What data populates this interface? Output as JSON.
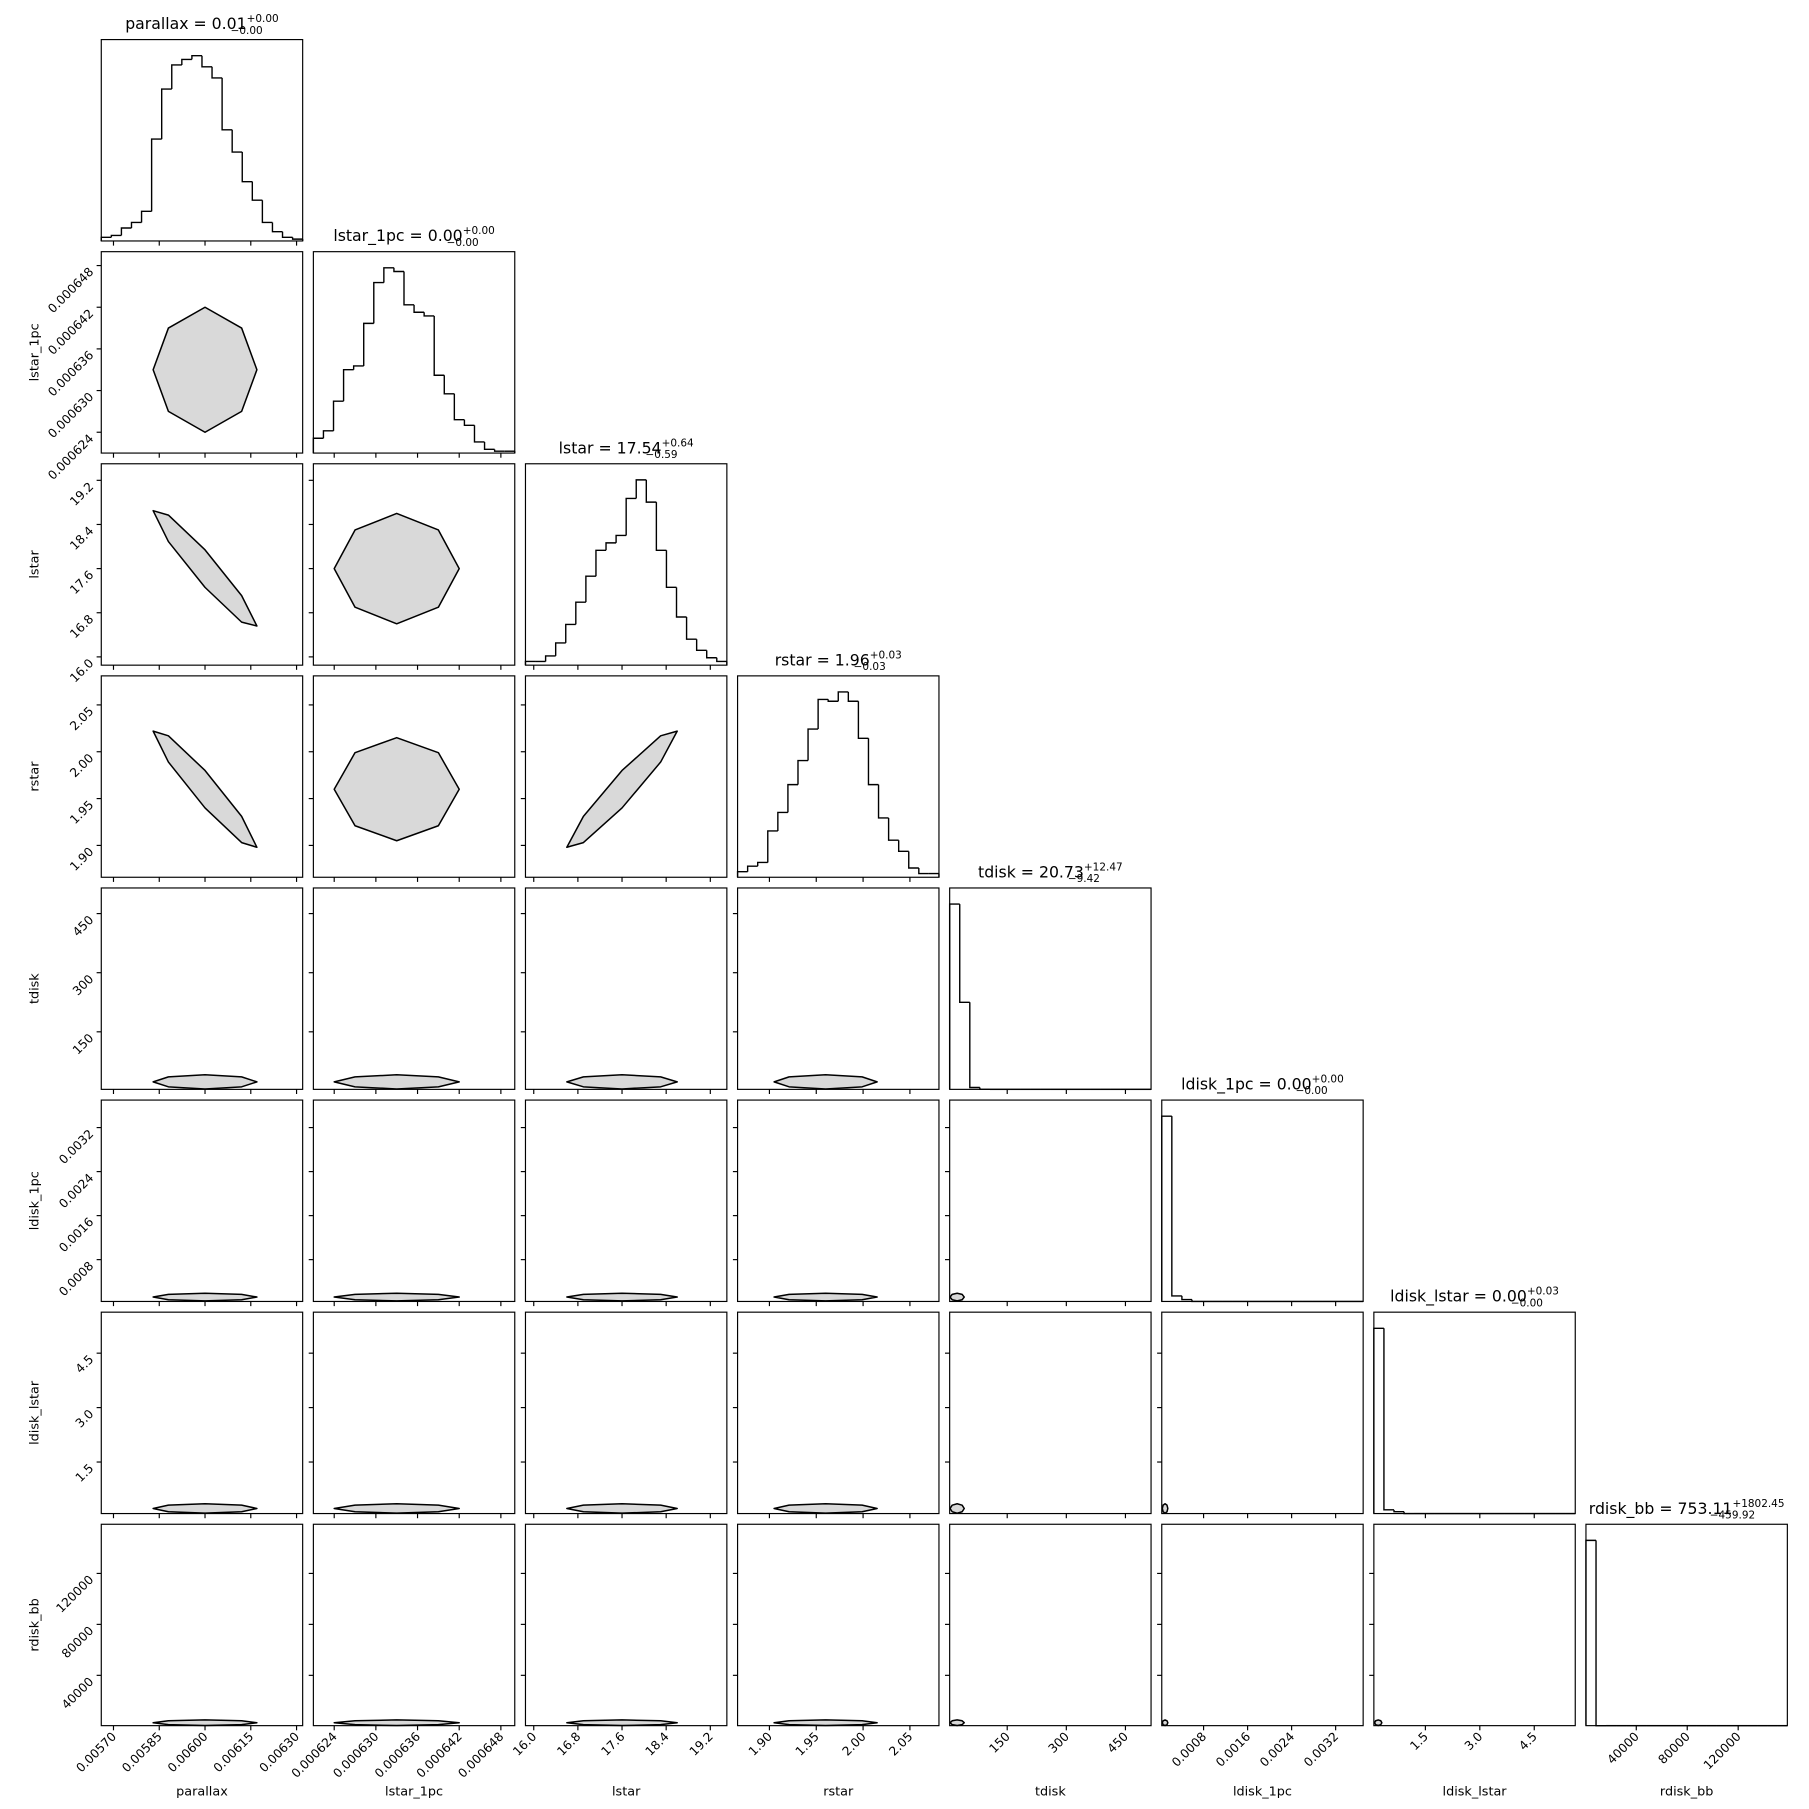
{
  "chart_data": {
    "type": "corner",
    "params": [
      {
        "name": "parallax",
        "title": {
          "text": "parallax = 0.01",
          "sup": "+0.00",
          "sub": "−0.00"
        },
        "lim": [
          0.00566,
          0.00632
        ],
        "ticks": [
          {
            "value": 0.0057,
            "label": "0.00570"
          },
          0.00585,
          {
            "value": 0.006,
            "label": "0.00600"
          },
          0.00615,
          {
            "value": 0.0063,
            "label": "0.00630"
          }
        ],
        "bins": [
          0.00566,
          0.005693,
          0.005726,
          0.005759,
          0.005792,
          0.005825,
          0.005858,
          0.005891,
          0.005924,
          0.005957,
          0.00599,
          0.006023,
          0.006056,
          0.006089,
          0.006122,
          0.006155,
          0.006188,
          0.006221,
          0.006254,
          0.006287,
          0.00632
        ],
        "counts": [
          2,
          3,
          7,
          10,
          16,
          55,
          82,
          95,
          98,
          100,
          94,
          88,
          60,
          48,
          32,
          22,
          10,
          5,
          2,
          1
        ]
      },
      {
        "name": "lstar_1pc",
        "title": {
          "text": "lstar_1pc = 0.00",
          "sup": "+0.00",
          "sub": "−0.00"
        },
        "lim": [
          0.000621,
          0.00065
        ],
        "ticks": [
          0.000624,
          {
            "value": 0.00063,
            "label": "0.000630"
          },
          0.000636,
          0.000642,
          0.000648
        ],
        "bins": [
          0.000621,
          0.00062245,
          0.0006239,
          0.00062535,
          0.0006268,
          0.00062825,
          0.0006297,
          0.00063115,
          0.0006326,
          0.00063405,
          0.0006355,
          0.00063695,
          0.0006384,
          0.00063985,
          0.0006413,
          0.00064275,
          0.0006442,
          0.00064565,
          0.0006471,
          0.00064855,
          0.00065
        ],
        "counts": [
          8,
          12,
          28,
          45,
          47,
          70,
          92,
          100,
          98,
          80,
          76,
          74,
          42,
          32,
          18,
          15,
          6,
          2,
          1,
          1
        ]
      },
      {
        "name": "lstar",
        "title": {
          "text": "lstar = 17.54",
          "sup": "+0.64",
          "sub": "−0.59"
        },
        "lim": [
          15.85,
          19.5
        ],
        "ticks": [
          {
            "value": 16,
            "label": "16.0"
          },
          16.8,
          17.6,
          18.4,
          19.2
        ],
        "bins": [
          15.85,
          16.0325,
          16.215,
          16.3975,
          16.58,
          16.7625,
          16.945,
          17.1275,
          17.31,
          17.4925,
          17.675,
          17.8575,
          18.04,
          18.2225,
          18.405,
          18.5875,
          18.77,
          18.9525,
          19.135,
          19.3175,
          19.5
        ],
        "counts": [
          2,
          2,
          5,
          12,
          22,
          34,
          48,
          62,
          66,
          70,
          90,
          100,
          88,
          62,
          42,
          26,
          14,
          8,
          4,
          2
        ]
      },
      {
        "name": "rstar",
        "title": {
          "text": "rstar = 1.96",
          "sup": "+0.03",
          "sub": "−0.03"
        },
        "lim": [
          1.866,
          2.081
        ],
        "ticks": [
          {
            "value": 1.9,
            "label": "1.90"
          },
          1.95,
          {
            "value": 2,
            "label": "2.00"
          },
          2.05
        ],
        "bins": [
          1.866,
          1.87675,
          1.8875,
          1.89825,
          1.909,
          1.91975,
          1.9305,
          1.94125,
          1.952,
          1.96275,
          1.9735,
          1.98425,
          1.995,
          2.00575,
          2.0165,
          2.02725,
          2.038,
          2.04875,
          2.0595,
          2.07025,
          2.081
        ],
        "counts": [
          3,
          6,
          8,
          25,
          35,
          50,
          63,
          80,
          96,
          95,
          100,
          95,
          75,
          50,
          32,
          20,
          14,
          5,
          2,
          2
        ]
      },
      {
        "name": "tdisk",
        "title": {
          "text": "tdisk = 20.73",
          "sup": "+12.47",
          "sub": "−9.42"
        },
        "lim": [
          4,
          515
        ],
        "ticks": [
          150,
          300,
          450
        ],
        "bins": [
          4,
          29.55,
          55.1,
          80.65,
          106.2,
          131.75,
          157.3,
          182.85,
          208.4,
          233.95,
          259.5,
          285.05,
          310.6,
          336.15,
          361.7,
          387.25,
          412.8,
          438.35,
          463.9,
          489.45,
          515
        ],
        "counts": [
          100,
          47,
          1,
          0,
          0,
          0,
          0,
          0,
          0,
          0,
          0,
          0,
          0,
          0,
          0,
          0,
          0,
          0,
          0,
          0
        ]
      },
      {
        "name": "ldisk_1pc",
        "title": {
          "text": "ldisk_1pc = 0.00",
          "sup": "+0.00",
          "sub": "−0.00"
        },
        "lim": [
          4e-05,
          0.0037
        ],
        "ticks": [
          0.0008,
          0.0016,
          0.0024,
          0.0032
        ],
        "bins": [
          4e-05,
          0.000223,
          0.000406,
          0.000589,
          0.000772,
          0.000955,
          0.001138,
          0.001321,
          0.001504,
          0.001687,
          0.00187,
          0.002053,
          0.002236,
          0.002419,
          0.002602,
          0.002785,
          0.002968,
          0.003151,
          0.003334,
          0.003517,
          0.0037
        ],
        "counts": [
          100,
          3,
          1,
          0,
          0,
          0,
          0,
          0,
          0,
          0,
          0,
          0,
          0,
          0,
          0,
          0,
          0,
          0,
          0,
          0
        ]
      },
      {
        "name": "ldisk_lstar",
        "title": {
          "text": "ldisk_lstar = 0.00",
          "sup": "+0.03",
          "sub": "−0.00"
        },
        "lim": [
          0.08,
          5.63
        ],
        "ticks": [
          1.5,
          {
            "value": 3,
            "label": "3.0"
          },
          4.5
        ],
        "bins": [
          0.08,
          0.3575,
          0.635,
          0.9125,
          1.19,
          1.4675,
          1.745,
          2.0225,
          2.3,
          2.5775,
          2.855,
          3.1325,
          3.41,
          3.6875,
          3.965,
          4.2425,
          4.52,
          4.7975,
          5.075,
          5.3525,
          5.63
        ],
        "counts": [
          100,
          2,
          1,
          0,
          0,
          0,
          0,
          0,
          0,
          0,
          0,
          0,
          0,
          0,
          0,
          0,
          0,
          0,
          0,
          0
        ]
      },
      {
        "name": "rdisk_bb",
        "title": {
          "text": "rdisk_bb = 753.11",
          "sup": "+1802.45",
          "sub": "−459.92"
        },
        "lim": [
          500,
          158600
        ],
        "ticks": [
          40000,
          80000,
          120000
        ],
        "bins": [
          500,
          8405,
          16310,
          24215,
          32120,
          40025,
          47930,
          55835,
          63740,
          71645,
          79550,
          87455,
          95360,
          103265,
          111170,
          119075,
          126980,
          134885,
          142790,
          150695,
          158600
        ],
        "counts": [
          100,
          0,
          0,
          0,
          0,
          0,
          0,
          0,
          0,
          0,
          0,
          0,
          0,
          0,
          0,
          0,
          0,
          0,
          0,
          0
        ]
      }
    ],
    "pairs": [
      {
        "x": [
          0.00617,
          0.00612,
          0.006,
          0.00588,
          0.00583,
          0.00588,
          0.006,
          0.00612
        ],
        "y": [
          0.000633,
          0.000639,
          0.000642,
          0.000639,
          0.000633,
          0.000627,
          0.000624,
          0.000627
        ]
      },
      {
        "x": [
          0.00617,
          0.00612,
          0.006,
          0.00588,
          0.00583,
          0.00588,
          0.006,
          0.00612
        ],
        "y": [
          16.56,
          17.11,
          17.94,
          18.57,
          18.65,
          18.09,
          17.26,
          16.63
        ]
      },
      {
        "x": [
          0.000642,
          0.000639,
          0.000633,
          0.000627,
          0.000624,
          0.000627,
          0.000633,
          0.000639
        ],
        "y": [
          17.6,
          18.3,
          18.6,
          18.3,
          17.6,
          16.9,
          16.6,
          16.9
        ]
      },
      {
        "x": [
          0.00617,
          0.00612,
          0.006,
          0.00588,
          0.00583,
          0.00588,
          0.006,
          0.00612
        ],
        "y": [
          1.898,
          1.931,
          1.98,
          2.017,
          2.022,
          1.989,
          1.94,
          1.903
        ]
      },
      {
        "x": [
          0.000642,
          0.000639,
          0.000633,
          0.000627,
          0.000624,
          0.000627,
          0.000633,
          0.000639
        ],
        "y": [
          1.96,
          1.999,
          2.015,
          1.999,
          1.96,
          1.921,
          1.905,
          1.921
        ]
      },
      {
        "x": [
          18.6,
          18.3,
          17.6,
          16.9,
          16.6,
          16.9,
          17.6,
          18.3
        ],
        "y": [
          2.022,
          2.017,
          1.98,
          1.931,
          1.898,
          1.903,
          1.94,
          1.989
        ]
      },
      {
        "x": [
          0.00617,
          0.00612,
          0.006,
          0.00588,
          0.00583,
          0.00588,
          0.006,
          0.00612
        ],
        "y": [
          23,
          35.6,
          41,
          35.6,
          23,
          10.4,
          5,
          10.4
        ]
      },
      {
        "x": [
          0.000642,
          0.000639,
          0.000633,
          0.000627,
          0.000624,
          0.000627,
          0.000633,
          0.000639
        ],
        "y": [
          23,
          35.6,
          41,
          35.6,
          23,
          10.4,
          5,
          10.4
        ]
      },
      {
        "x": [
          18.6,
          18.3,
          17.6,
          16.9,
          16.6,
          16.9,
          17.6,
          18.3
        ],
        "y": [
          23,
          35.6,
          41,
          35.6,
          23,
          10.4,
          5,
          10.4
        ]
      },
      {
        "x": [
          2.015,
          1.999,
          1.96,
          1.921,
          1.905,
          1.921,
          1.96,
          1.999
        ],
        "y": [
          23,
          35.6,
          41,
          35.6,
          23,
          10.4,
          5,
          10.4
        ]
      },
      {
        "x": [
          0.00617,
          0.00612,
          0.006,
          0.00588,
          0.00583,
          0.00588,
          0.006,
          0.00612
        ],
        "y": [
          0.00012,
          0.000169,
          0.00019,
          0.000169,
          0.00012,
          7.1e-05,
          5e-05,
          7.1e-05
        ]
      },
      {
        "x": [
          0.000642,
          0.000639,
          0.000633,
          0.000627,
          0.000624,
          0.000627,
          0.000633,
          0.000639
        ],
        "y": [
          0.00012,
          0.000169,
          0.00019,
          0.000169,
          0.00012,
          7.1e-05,
          5e-05,
          7.1e-05
        ]
      },
      {
        "x": [
          18.6,
          18.3,
          17.6,
          16.9,
          16.6,
          16.9,
          17.6,
          18.3
        ],
        "y": [
          0.00012,
          0.000169,
          0.00019,
          0.000169,
          0.00012,
          7.1e-05,
          5e-05,
          7.1e-05
        ]
      },
      {
        "x": [
          2.015,
          1.999,
          1.96,
          1.921,
          1.905,
          1.921,
          1.96,
          1.999
        ],
        "y": [
          0.00012,
          0.000169,
          0.00019,
          0.000169,
          0.00012,
          7.1e-05,
          5e-05,
          7.1e-05
        ]
      },
      {
        "x": [
          41,
          35.6,
          23,
          10.4,
          5,
          10.4,
          23,
          35.6
        ],
        "y": [
          0.00012,
          0.000169,
          0.00019,
          0.000169,
          0.00012,
          7.1e-05,
          5e-05,
          7.1e-05
        ]
      },
      {
        "x": [
          0.00617,
          0.00612,
          0.006,
          0.00588,
          0.00583,
          0.00588,
          0.006,
          0.00612
        ],
        "y": [
          0.22,
          0.311,
          0.35,
          0.311,
          0.22,
          0.129,
          0.09,
          0.129
        ]
      },
      {
        "x": [
          0.000642,
          0.000639,
          0.000633,
          0.000627,
          0.000624,
          0.000627,
          0.000633,
          0.000639
        ],
        "y": [
          0.22,
          0.311,
          0.35,
          0.311,
          0.22,
          0.129,
          0.09,
          0.129
        ]
      },
      {
        "x": [
          18.6,
          18.3,
          17.6,
          16.9,
          16.6,
          16.9,
          17.6,
          18.3
        ],
        "y": [
          0.22,
          0.311,
          0.35,
          0.311,
          0.22,
          0.129,
          0.09,
          0.129
        ]
      },
      {
        "x": [
          2.015,
          1.999,
          1.96,
          1.921,
          1.905,
          1.921,
          1.96,
          1.999
        ],
        "y": [
          0.22,
          0.311,
          0.35,
          0.311,
          0.22,
          0.129,
          0.09,
          0.129
        ]
      },
      {
        "x": [
          41,
          35.6,
          23,
          10.4,
          5,
          10.4,
          23,
          35.6
        ],
        "y": [
          0.22,
          0.311,
          0.35,
          0.311,
          0.22,
          0.129,
          0.09,
          0.129
        ]
      },
      {
        "x": [
          0.00015,
          0.000135,
          0.0001,
          6.5e-05,
          5e-05,
          6.5e-05,
          0.0001,
          0.000135
        ],
        "y": [
          0.22,
          0.311,
          0.35,
          0.311,
          0.22,
          0.129,
          0.09,
          0.129
        ]
      },
      {
        "x": [
          0.00617,
          0.00612,
          0.006,
          0.00588,
          0.00583,
          0.00588,
          0.006,
          0.00612
        ],
        "y": [
          2800,
          4340,
          5000,
          4340,
          2800,
          1260,
          600,
          1260
        ]
      },
      {
        "x": [
          0.000642,
          0.000639,
          0.000633,
          0.000627,
          0.000624,
          0.000627,
          0.000633,
          0.000639
        ],
        "y": [
          2800,
          4340,
          5000,
          4340,
          2800,
          1260,
          600,
          1260
        ]
      },
      {
        "x": [
          18.6,
          18.3,
          17.6,
          16.9,
          16.6,
          16.9,
          17.6,
          18.3
        ],
        "y": [
          2800,
          4340,
          5000,
          4340,
          2800,
          1260,
          600,
          1260
        ]
      },
      {
        "x": [
          2.015,
          1.999,
          1.96,
          1.921,
          1.905,
          1.921,
          1.96,
          1.999
        ],
        "y": [
          2800,
          4340,
          5000,
          4340,
          2800,
          1260,
          600,
          1260
        ]
      },
      {
        "x": [
          41,
          35.6,
          23,
          10.4,
          5,
          10.4,
          23,
          35.6
        ],
        "y": [
          2800,
          4340,
          5000,
          4340,
          2800,
          1260,
          600,
          1260
        ]
      },
      {
        "x": [
          0.00015,
          0.000135,
          0.0001,
          6.5e-05,
          5e-05,
          6.5e-05,
          0.0001,
          0.000135
        ],
        "y": [
          2800,
          4340,
          5000,
          4340,
          2800,
          1260,
          600,
          1260
        ]
      },
      {
        "x": [
          0.3,
          0.27,
          0.2,
          0.13,
          0.1,
          0.13,
          0.2,
          0.27
        ],
        "y": [
          2800,
          4340,
          5000,
          4340,
          2800,
          1260,
          600,
          1260
        ]
      }
    ]
  }
}
